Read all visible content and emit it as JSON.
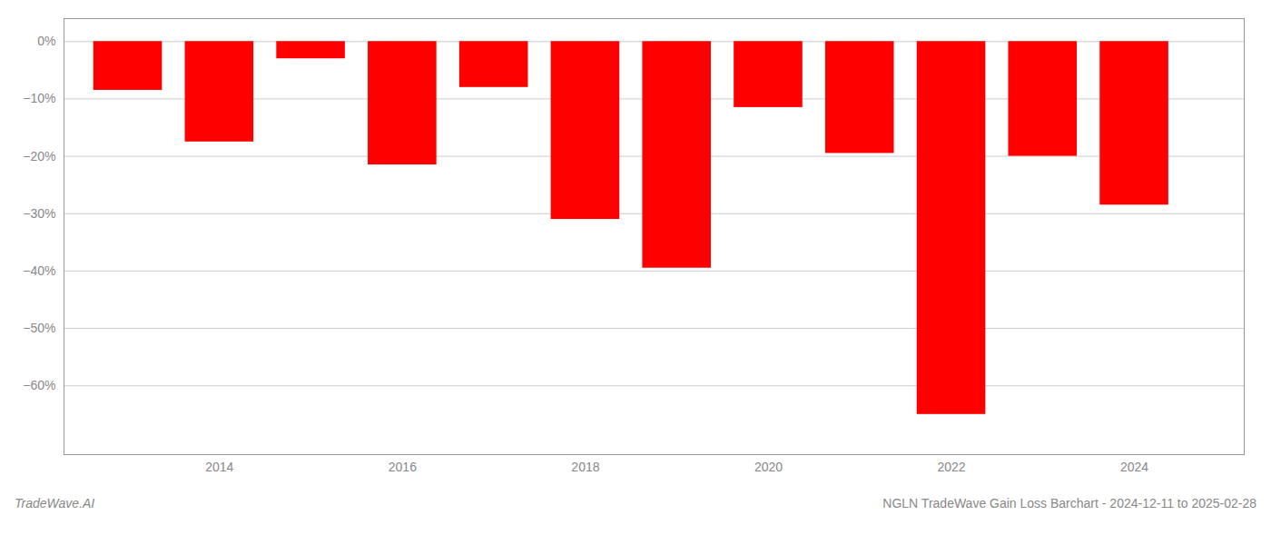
{
  "chart_data": {
    "type": "bar",
    "title": "NGLN TradeWave Gain Loss Barchart - 2024-12-11 to 2025-02-28",
    "annotations": [
      "TradeWave.AI"
    ],
    "x": [
      2013,
      2014,
      2015,
      2016,
      2017,
      2018,
      2019,
      2020,
      2021,
      2022,
      2023,
      2024
    ],
    "values": [
      -8.5,
      -17.5,
      -3.0,
      -21.5,
      -8.0,
      -31.0,
      -39.5,
      -11.5,
      -19.5,
      -65.0,
      -20.0,
      -28.5
    ],
    "color": "#ff0000",
    "xlim": [
      2012.3,
      2025.2
    ],
    "xticks": [
      2014,
      2016,
      2018,
      2020,
      2022,
      2024
    ],
    "ylim": [
      -72,
      4
    ],
    "yticks": [
      {
        "value": 0,
        "label": "0%"
      },
      {
        "value": -10,
        "label": "−10%"
      },
      {
        "value": -20,
        "label": "−20%"
      },
      {
        "value": -30,
        "label": "−30%"
      },
      {
        "value": -40,
        "label": "−40%"
      },
      {
        "value": -50,
        "label": "−50%"
      },
      {
        "value": -60,
        "label": "−60%"
      }
    ],
    "grid": true
  }
}
